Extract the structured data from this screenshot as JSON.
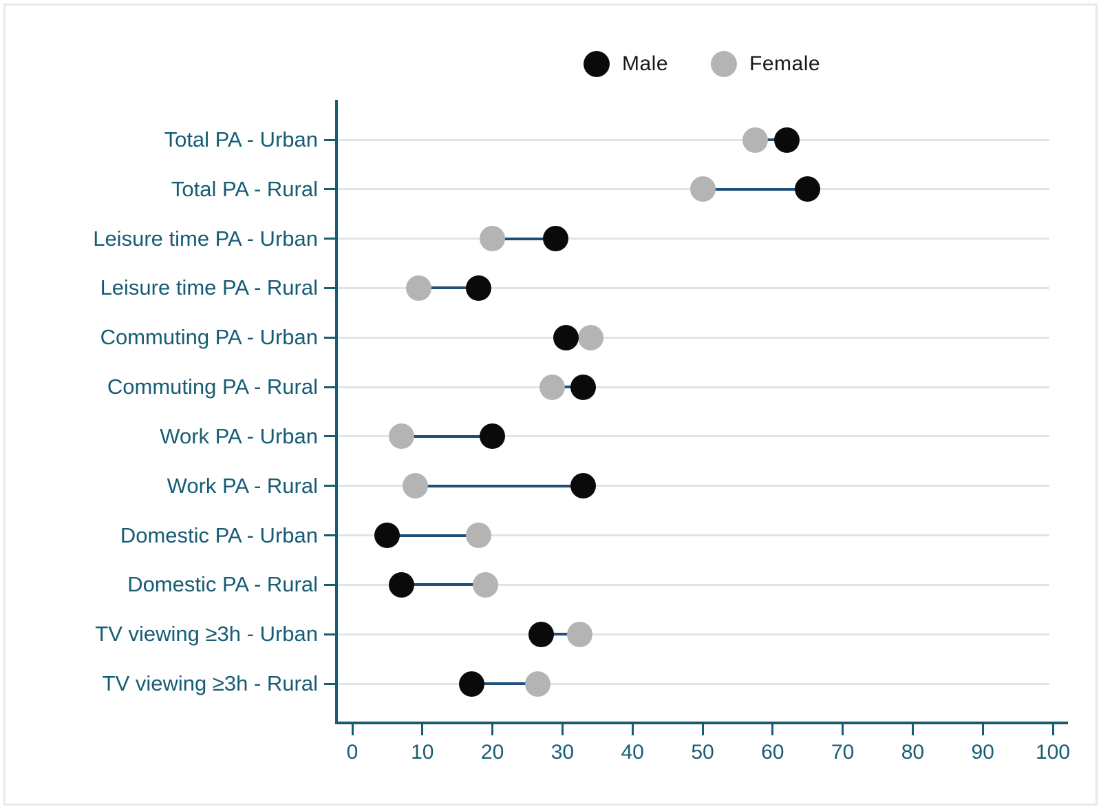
{
  "figure": {
    "background": "#ffffff",
    "border_color": "#e2ebed"
  },
  "legend": {
    "items": [
      {
        "label": "Male",
        "color": "#0a0a0a"
      },
      {
        "label": "Female",
        "color": "#b4b4b4"
      }
    ]
  },
  "chart_data": {
    "type": "scatter",
    "subtype": "dumbbell",
    "orientation": "horizontal",
    "title": "",
    "xlabel": "",
    "ylabel": "",
    "xlim": [
      0,
      100
    ],
    "x_ticks": [
      "0",
      "10",
      "20",
      "30",
      "40",
      "50",
      "60",
      "70",
      "80",
      "90",
      "100"
    ],
    "grid": "horizontal gridlines on",
    "legend_position": "top-center",
    "categories": [
      "Total PA - Urban",
      "Total PA - Rural",
      "Leisure time PA - Urban",
      "Leisure time PA - Rural",
      "Commuting PA - Urban",
      "Commuting PA - Rural",
      "Work PA - Urban",
      "Work PA - Rural",
      "Domestic PA - Urban",
      "Domestic PA - Rural",
      "TV viewing ≥3h - Urban",
      "TV viewing ≥3h - Rural"
    ],
    "series": [
      {
        "name": "Male",
        "color": "#0a0a0a",
        "values": [
          62,
          65,
          29,
          18,
          30.5,
          33,
          20,
          33,
          5,
          7,
          27,
          17
        ]
      },
      {
        "name": "Female",
        "color": "#b4b4b4",
        "values": [
          57.5,
          50,
          20,
          9.5,
          34,
          28.5,
          7,
          9,
          18,
          19,
          32.5,
          26.5
        ]
      }
    ],
    "connector_color": "#1f4e79",
    "axis_color": "#165c74",
    "tick_label_color": "#165c74",
    "category_label_color": "#165c74",
    "gridline_color": "#dbe5ee"
  }
}
